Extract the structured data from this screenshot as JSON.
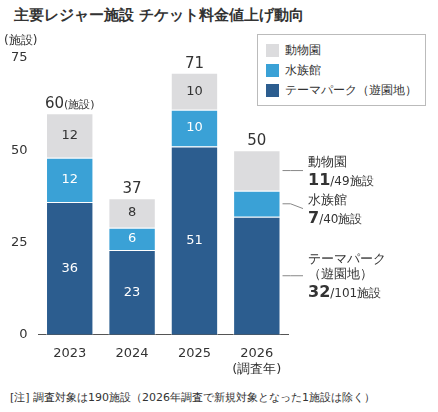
{
  "chart_data": {
    "type": "bar",
    "title": "主要レジャー施設 チケット料金値上げ動向",
    "y_label": "(施設)",
    "note": "[注] 調査対象は190施設（2026年調査で新規対象となった1施設は除く）",
    "categories": [
      "2023",
      "2024",
      "2025",
      "2026\n(調査年)"
    ],
    "series": [
      {
        "name": "テーマパーク（遊園地）",
        "color": "#2c5d8f",
        "values": [
          36,
          23,
          51,
          32
        ],
        "value_labels": [
          "36",
          "23",
          "51",
          null
        ]
      },
      {
        "name": "水族館",
        "color": "#3aa1d6",
        "values": [
          12,
          6,
          10,
          7
        ],
        "value_labels": [
          "12",
          "6",
          "10",
          null
        ]
      },
      {
        "name": "動物園",
        "color": "#dcdcde",
        "values": [
          12,
          8,
          10,
          11
        ],
        "value_labels": [
          "12",
          "8",
          "10",
          null
        ]
      }
    ],
    "totals": [
      60,
      37,
      71,
      50
    ],
    "total_labels": [
      "60(施設)",
      "37",
      "71",
      "50"
    ],
    "annotations": [
      {
        "category": "2026\n(調査年)",
        "series": "動物園",
        "text": "11/49施設"
      },
      {
        "category": "2026\n(調査年)",
        "series": "水族館",
        "text": "7/40施設"
      },
      {
        "category": "2026\n(調査年)",
        "series": "テーマパーク（遊園地）",
        "text": "32/101施設"
      }
    ],
    "ylim": [
      0,
      75
    ],
    "yticks": [
      0,
      25,
      50,
      75
    ],
    "grid": false,
    "stacked": true,
    "data_labels": true,
    "legend": "top-right"
  }
}
